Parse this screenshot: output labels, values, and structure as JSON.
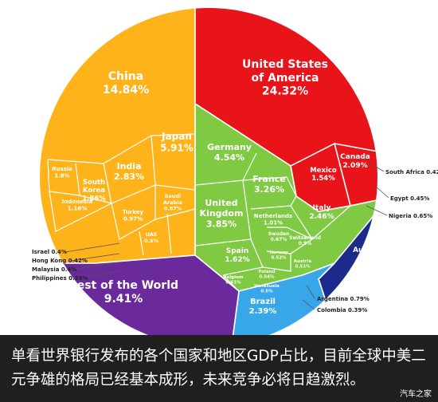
{
  "colors": {
    "usa": "#e8141a",
    "china": "#ffb31a",
    "europe": "#7fc943",
    "rest": "#6a2a9c",
    "americas": "#37a7ea",
    "africa": "#1d5fc7",
    "australia": "#1c2a8c",
    "caption_bg": "#1f1f1f"
  },
  "chart_data": {
    "type": "voronoi-treemap",
    "title": "",
    "regions": [
      {
        "id": "usa",
        "name": "United States\nof America",
        "value": "24.32%"
      },
      {
        "id": "china",
        "name": "China",
        "value": "14.84%"
      },
      {
        "id": "japan",
        "name": "Japan",
        "value": "5.91%"
      },
      {
        "id": "germany",
        "name": "Germany",
        "value": "4.54%"
      },
      {
        "id": "uk",
        "name": "United\nKingdom",
        "value": "3.85%"
      },
      {
        "id": "france",
        "name": "France",
        "value": "3.26%"
      },
      {
        "id": "india",
        "name": "India",
        "value": "2.83%"
      },
      {
        "id": "italy",
        "name": "Italy",
        "value": "2.46%"
      },
      {
        "id": "brazil",
        "name": "Brazil",
        "value": "2.39%"
      },
      {
        "id": "canada",
        "name": "Canada",
        "value": "2.09%"
      },
      {
        "id": "korea",
        "name": "South\nKorea",
        "value": "1.86%"
      },
      {
        "id": "russia",
        "name": "Russia",
        "value": "1.8%"
      },
      {
        "id": "australia",
        "name": "Australia",
        "value": "1.81%"
      },
      {
        "id": "spain",
        "name": "Spain",
        "value": "1.62%"
      },
      {
        "id": "mexico",
        "name": "Mexico",
        "value": "1.54%"
      },
      {
        "id": "indonesia",
        "name": "Indonesia",
        "value": "1.16%"
      },
      {
        "id": "netherlands",
        "name": "Netherlands",
        "value": "1.01%"
      },
      {
        "id": "turkey",
        "name": "Turkey",
        "value": "0.97%"
      },
      {
        "id": "switzerland",
        "name": "Switzerland",
        "value": "0.9%"
      },
      {
        "id": "saudi",
        "name": "Saudi\nArabia",
        "value": "0.87%"
      },
      {
        "id": "sweden",
        "name": "Sweden",
        "value": "0.67%"
      },
      {
        "id": "belgium",
        "name": "Belgium",
        "value": "0.61%"
      },
      {
        "id": "poland",
        "name": "Poland",
        "value": "0.54%"
      },
      {
        "id": "norway",
        "name": "Norway",
        "value": "0.52%"
      },
      {
        "id": "austria",
        "name": "Austria",
        "value": "0.51%"
      },
      {
        "id": "venezuela",
        "name": "Venezuela",
        "value": "0.5%"
      },
      {
        "id": "uae",
        "name": "UAE",
        "value": "0.5%"
      },
      {
        "id": "rest",
        "name": "Rest of the World",
        "value": "9.41%"
      }
    ],
    "external_labels": [
      {
        "id": "south-africa",
        "text": "South Africa 0.42%"
      },
      {
        "id": "egypt",
        "text": "Egypt 0.45%"
      },
      {
        "id": "nigeria",
        "text": "Nigeria 0.65%"
      },
      {
        "id": "argentina",
        "text": "Argentina 0.79%"
      },
      {
        "id": "colombia",
        "text": "Colombia 0.39%"
      },
      {
        "id": "israel",
        "text": "Israel 0.4%"
      },
      {
        "id": "hong-kong",
        "text": "Hong Kong 0.42%"
      },
      {
        "id": "malaysia",
        "text": "Malaysia 0.4%"
      },
      {
        "id": "philippines",
        "text": "Philippines 0.39%"
      }
    ]
  },
  "caption": {
    "text": "单看世界银行发布的各个国家和地区GDP占比，目前全球中美二元争雄的格局已经基本成形，未来竞争必将日趋激烈。",
    "watermark": "汽车之家"
  }
}
